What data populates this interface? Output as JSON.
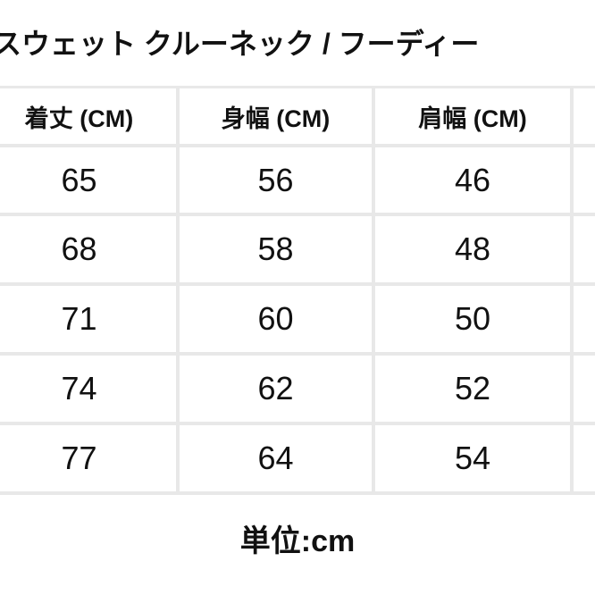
{
  "title": "スウェット クルーネック / フーディー",
  "table": {
    "headers": [
      "着丈 (CM)",
      "身幅 (CM)",
      "肩幅 (CM)"
    ],
    "rows": [
      [
        "65",
        "56",
        "46"
      ],
      [
        "68",
        "58",
        "48"
      ],
      [
        "71",
        "60",
        "50"
      ],
      [
        "74",
        "62",
        "52"
      ],
      [
        "77",
        "64",
        "54"
      ]
    ]
  },
  "unit_note": "単位:cm",
  "colors": {
    "grid_line": "#e8e8e8",
    "text": "#111111",
    "background": "#ffffff"
  }
}
